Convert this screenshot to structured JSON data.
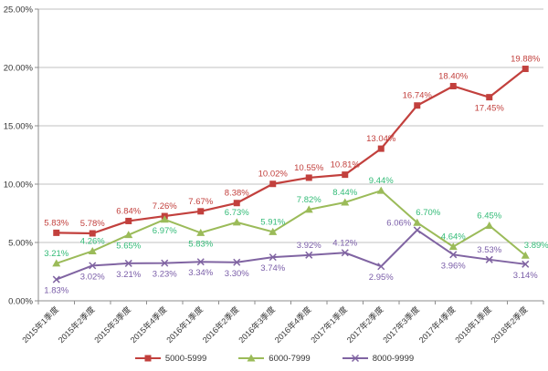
{
  "chart_data": {
    "type": "line",
    "title": "",
    "categories": [
      "2015年1季度",
      "2015年2季度",
      "2015年3季度",
      "2015年4季度",
      "2016年1季度",
      "2016年2季度",
      "2016年3季度",
      "2016年4季度",
      "2017年1季度",
      "2017年2季度",
      "2017年3季度",
      "2017年4季度",
      "2018年1季度",
      "2018年2季度"
    ],
    "series": [
      {
        "name": "5000-5999",
        "marker": "square",
        "color": "#C2403D",
        "label_color": "#C2403D",
        "values": [
          5.83,
          5.78,
          6.84,
          7.26,
          7.67,
          8.38,
          10.02,
          10.55,
          10.81,
          13.04,
          16.74,
          18.4,
          17.45,
          19.88
        ],
        "label_sides": [
          "a",
          "a",
          "a",
          "a",
          "a",
          "a",
          "a",
          "a",
          "a",
          "a",
          "a",
          "a",
          "b",
          "a"
        ]
      },
      {
        "name": "6000-7999",
        "marker": "triangle",
        "color": "#9BBB59",
        "label_color": "#33BB77",
        "values": [
          3.21,
          4.26,
          5.65,
          6.97,
          5.83,
          6.73,
          5.91,
          7.82,
          8.44,
          9.44,
          6.7,
          4.64,
          6.45,
          3.89
        ],
        "label_sides": [
          "a",
          "a",
          "b",
          "b",
          "b",
          "a",
          "a",
          "a",
          "a",
          "a",
          "ar",
          "a",
          "a",
          "ar"
        ]
      },
      {
        "name": "8000-9999",
        "marker": "x",
        "color": "#8064A2",
        "label_color": "#7A5DA8",
        "values": [
          1.83,
          3.02,
          3.21,
          3.23,
          3.34,
          3.3,
          3.74,
          3.92,
          4.12,
          2.95,
          6.06,
          3.96,
          3.53,
          3.14
        ],
        "label_sides": [
          "b",
          "b",
          "b",
          "b",
          "b",
          "b",
          "b",
          "a",
          "a",
          "b",
          "al",
          "b",
          "a",
          "b"
        ]
      }
    ],
    "y_axis": {
      "min": 0,
      "max": 25,
      "step": 5,
      "tick_labels": [
        "0.00%",
        "5.00%",
        "10.00%",
        "15.00%",
        "20.00%",
        "25.00%"
      ]
    },
    "label_format": "0.00%",
    "grid": true,
    "legend_position": "bottom",
    "colors": {
      "background": "#FFFFFF",
      "gridline": "#C2C2C2",
      "axis": "#8E8E8E",
      "tick_text": "#363636"
    }
  }
}
